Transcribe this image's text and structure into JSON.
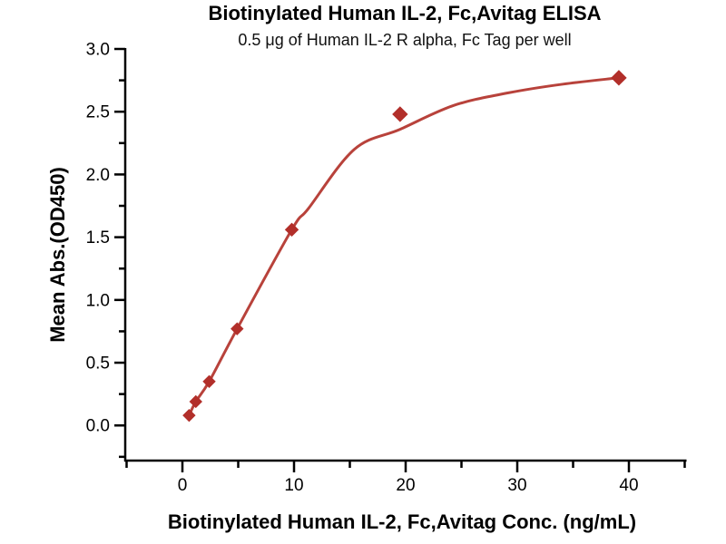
{
  "chart_data": {
    "type": "scatter",
    "title": "Biotinylated Human IL-2, Fc,Avitag ELISA",
    "subtitle": "0.5 μg of Human IL-2 R alpha, Fc Tag per well",
    "xlabel": "Biotinylated Human IL-2, Fc,Avitag Conc. (ng/mL)",
    "ylabel": "Mean Abs.(OD450)",
    "series_name": "Biotinylated Human IL-2, Fc,Avitag",
    "x": [
      0.6,
      1.2,
      2.4,
      4.9,
      9.8,
      19.5,
      39.1
    ],
    "y": [
      0.08,
      0.19,
      0.35,
      0.77,
      1.56,
      2.48,
      2.77
    ],
    "marker": "diamond",
    "marker_sizes": [
      6.5,
      6.5,
      6.5,
      6.5,
      7,
      8,
      8
    ],
    "fit_curve": [
      [
        0.6,
        0.08
      ],
      [
        1.2,
        0.19
      ],
      [
        2.4,
        0.35
      ],
      [
        4.9,
        0.77
      ],
      [
        9.8,
        1.56
      ],
      [
        11.3,
        1.73
      ],
      [
        15.4,
        2.2
      ],
      [
        19.5,
        2.36
      ],
      [
        24.3,
        2.55
      ],
      [
        29.2,
        2.65
      ],
      [
        34.1,
        2.72
      ],
      [
        39.1,
        2.77
      ]
    ],
    "x_axis": {
      "min": -5,
      "max": 45,
      "major_ticks": [
        0,
        10,
        20,
        30,
        40
      ],
      "tick_labels": [
        "0",
        "10",
        "20",
        "30",
        "40"
      ],
      "minor_ticks": [
        -5,
        5,
        15,
        25,
        35,
        45
      ]
    },
    "y_axis": {
      "min": -0.28,
      "max": 3.0,
      "major_ticks": [
        0.0,
        0.5,
        1.0,
        1.5,
        2.0,
        2.5,
        3.0
      ],
      "tick_labels": [
        "0.0",
        "0.5",
        "1.0",
        "1.5",
        "2.0",
        "2.5",
        "3.0"
      ],
      "minor_ticks": [
        -0.25,
        0.25,
        0.75,
        1.25,
        1.75,
        2.25,
        2.75
      ]
    },
    "grid": false,
    "legend": "none",
    "colors": {
      "line": "#b8423b",
      "marker": "#b22f2a",
      "axis": "#000000",
      "text": "#000000",
      "background": "#ffffff"
    }
  }
}
